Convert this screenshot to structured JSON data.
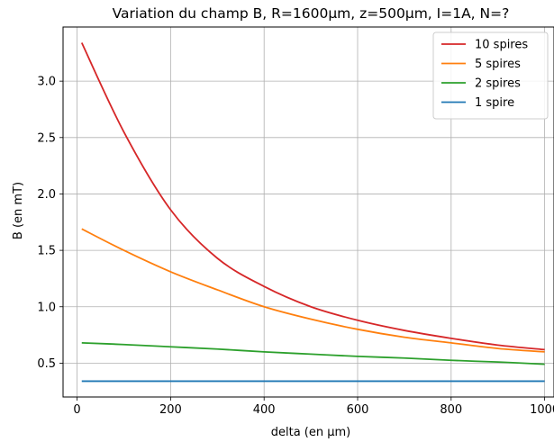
{
  "chart_data": {
    "type": "line",
    "title": "Variation du champ B, R=1600µm, z=500µm, I=1A, N=?",
    "xlabel": "delta (en µm)",
    "ylabel": "B (en mT)",
    "xlim": [
      -30,
      1020
    ],
    "ylim": [
      0.2,
      3.48
    ],
    "xticks": [
      0,
      200,
      400,
      600,
      800,
      1000
    ],
    "xtick_labels": [
      "0",
      "200",
      "400",
      "600",
      "800",
      "1000"
    ],
    "yticks": [
      0.5,
      1.0,
      1.5,
      2.0,
      2.5,
      3.0
    ],
    "ytick_labels": [
      "0.5",
      "1.0",
      "1.5",
      "2.0",
      "2.5",
      "3.0"
    ],
    "grid": true,
    "legend_position": "top-right",
    "x": [
      10,
      100,
      200,
      300,
      400,
      500,
      600,
      700,
      800,
      900,
      1000
    ],
    "series": [
      {
        "name": "10 spires",
        "color": "#d62728",
        "values": [
          3.34,
          2.55,
          1.86,
          1.43,
          1.18,
          1.0,
          0.88,
          0.79,
          0.72,
          0.66,
          0.62
        ]
      },
      {
        "name": "5 spires",
        "color": "#ff7f0e",
        "values": [
          1.69,
          1.5,
          1.31,
          1.15,
          1.0,
          0.89,
          0.8,
          0.73,
          0.68,
          0.63,
          0.6
        ]
      },
      {
        "name": "2 spires",
        "color": "#2ca02c",
        "values": [
          0.68,
          0.665,
          0.645,
          0.625,
          0.6,
          0.58,
          0.56,
          0.545,
          0.525,
          0.51,
          0.49
        ]
      },
      {
        "name": "1 spire",
        "color": "#1f77b4",
        "values": [
          0.34,
          0.34,
          0.34,
          0.34,
          0.34,
          0.34,
          0.34,
          0.34,
          0.34,
          0.34,
          0.34
        ]
      }
    ]
  }
}
